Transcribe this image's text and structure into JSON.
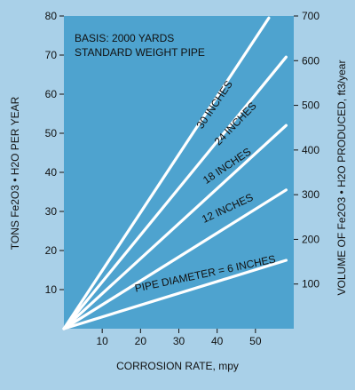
{
  "chart_data": {
    "type": "line",
    "xlabel": "CORROSION RATE, mpy",
    "ylabel_left": "TONS Fe2O3 • H2O PER YEAR",
    "ylabel_right": "VOLUME OF Fe2O3 • H2O PRODUCED, ft3/year",
    "x_ticks": [
      10,
      20,
      30,
      40,
      50
    ],
    "y_left_ticks": [
      10,
      20,
      30,
      40,
      50,
      60,
      70,
      80
    ],
    "y_right_ticks": [
      100,
      200,
      300,
      400,
      500,
      600,
      700
    ],
    "xlim": [
      0,
      60
    ],
    "ylim_left": [
      0,
      80
    ],
    "ylim_right": [
      0,
      700
    ],
    "annotation_lines": [
      "BASIS: 2000 YARDS",
      "STANDARD WEIGHT PIPE"
    ],
    "series": [
      {
        "name": "PIPE DIAMETER = 6 INCHES",
        "x": [
          0,
          58
        ],
        "y": [
          0,
          17.5
        ]
      },
      {
        "name": "12 INCHES",
        "x": [
          0,
          58
        ],
        "y": [
          0,
          35.5
        ]
      },
      {
        "name": "18 INCHES",
        "x": [
          0,
          58
        ],
        "y": [
          0,
          52
        ]
      },
      {
        "name": "24 INCHES",
        "x": [
          0,
          58
        ],
        "y": [
          0,
          69.5
        ]
      },
      {
        "name": "30 INCHES",
        "x": [
          0,
          53.5
        ],
        "y": [
          0,
          79.5
        ]
      }
    ],
    "grid": false,
    "colors": {
      "plot_background": "#4ea3cf",
      "page_background": "#a9d0e8",
      "lines": "#ffffff",
      "text": "#111111"
    }
  }
}
